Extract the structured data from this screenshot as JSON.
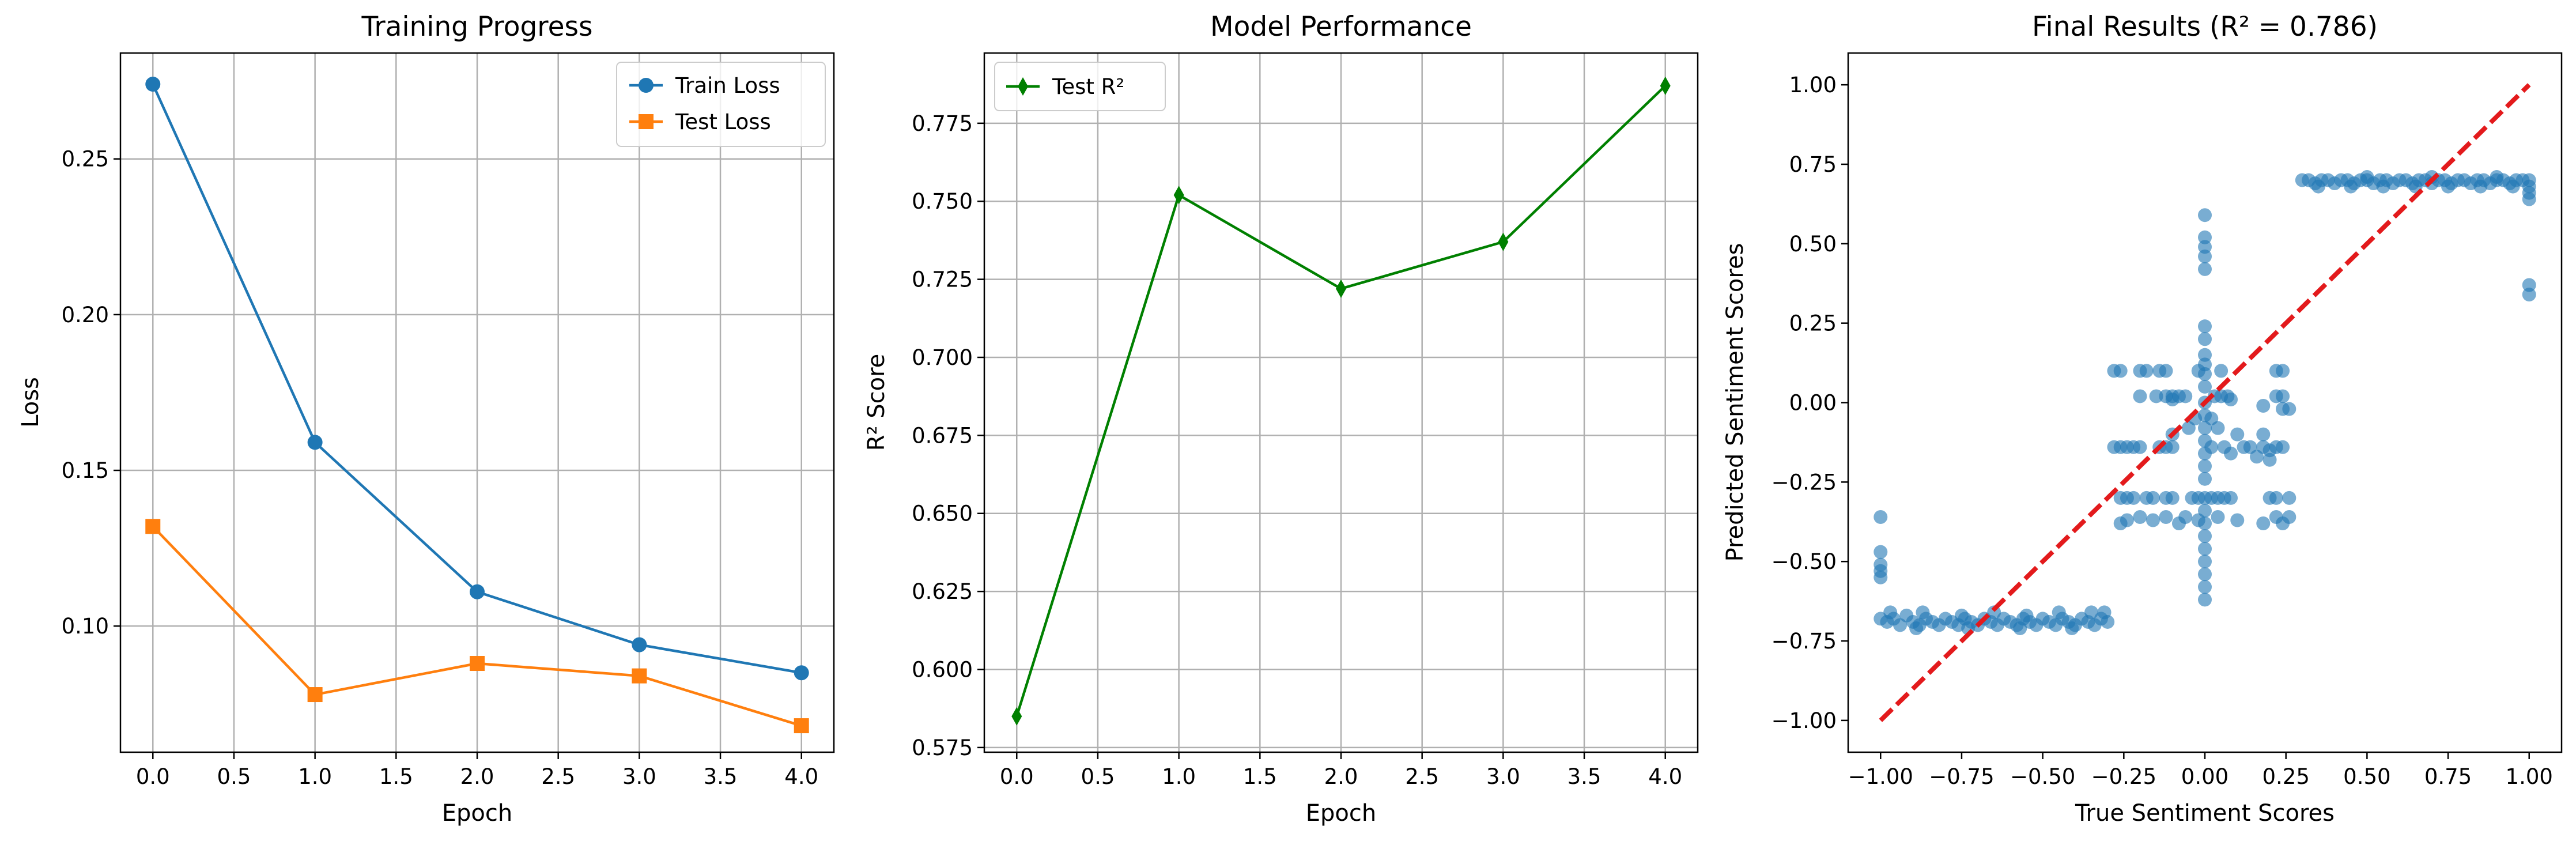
{
  "colors": {
    "train": "#1f77b4",
    "test": "#ff7f0e",
    "r2": "#008000",
    "scatter": "#1f77b4",
    "ideal_line": "#e31a1c",
    "grid": "#b0b0b0"
  },
  "chart_data": [
    {
      "type": "line",
      "title": "Training Progress",
      "xlabel": "Epoch",
      "ylabel": "Loss",
      "x": [
        0,
        1,
        2,
        3,
        4
      ],
      "xlim": [
        -0.2,
        4.2
      ],
      "ylim": [
        0.0595,
        0.284
      ],
      "xticks": [
        0.0,
        0.5,
        1.0,
        1.5,
        2.0,
        2.5,
        3.0,
        3.5,
        4.0
      ],
      "xtick_labels": [
        "0.0",
        "0.5",
        "1.0",
        "1.5",
        "2.0",
        "2.5",
        "3.0",
        "3.5",
        "4.0"
      ],
      "yticks": [
        0.1,
        0.15,
        0.2,
        0.25
      ],
      "ytick_labels": [
        "0.10",
        "0.15",
        "0.20",
        "0.25"
      ],
      "grid": true,
      "legend_position": "upper right",
      "series": [
        {
          "name": "Train Loss",
          "marker": "circle",
          "color": "#1f77b4",
          "values": [
            0.274,
            0.159,
            0.111,
            0.094,
            0.085
          ]
        },
        {
          "name": "Test Loss",
          "marker": "square",
          "color": "#ff7f0e",
          "values": [
            0.132,
            0.078,
            0.088,
            0.084,
            0.068
          ]
        }
      ]
    },
    {
      "type": "line",
      "title": "Model Performance",
      "xlabel": "Epoch",
      "ylabel": "R² Score",
      "x": [
        0,
        1,
        2,
        3,
        4
      ],
      "xlim": [
        -0.2,
        4.2
      ],
      "ylim": [
        0.5735,
        0.7975
      ],
      "xticks": [
        0.0,
        0.5,
        1.0,
        1.5,
        2.0,
        2.5,
        3.0,
        3.5,
        4.0
      ],
      "xtick_labels": [
        "0.0",
        "0.5",
        "1.0",
        "1.5",
        "2.0",
        "2.5",
        "3.0",
        "3.5",
        "4.0"
      ],
      "yticks": [
        0.575,
        0.6,
        0.625,
        0.65,
        0.675,
        0.7,
        0.725,
        0.75,
        0.775
      ],
      "ytick_labels": [
        "0.575",
        "0.600",
        "0.625",
        "0.650",
        "0.675",
        "0.700",
        "0.725",
        "0.750",
        "0.775"
      ],
      "grid": true,
      "legend_position": "upper left",
      "series": [
        {
          "name": "Test R²",
          "marker": "thin_diamond",
          "color": "#008000",
          "values": [
            0.585,
            0.752,
            0.722,
            0.737,
            0.787
          ]
        }
      ]
    },
    {
      "type": "scatter",
      "title": "Final Results (R² = 0.786)",
      "xlabel": "True Sentiment Scores",
      "ylabel": "Predicted Sentiment Scores",
      "xlim": [
        -1.1,
        1.1
      ],
      "ylim": [
        -1.1,
        1.1
      ],
      "xticks": [
        -1.0,
        -0.75,
        -0.5,
        -0.25,
        0.0,
        0.25,
        0.5,
        0.75,
        1.0
      ],
      "xtick_labels": [
        "−1.00",
        "−0.75",
        "−0.50",
        "−0.25",
        "0.00",
        "0.25",
        "0.50",
        "0.75",
        "1.00"
      ],
      "yticks": [
        -1.0,
        -0.75,
        -0.5,
        -0.25,
        0.0,
        0.25,
        0.5,
        0.75,
        1.0
      ],
      "ytick_labels": [
        "−1.00",
        "−0.75",
        "−0.50",
        "−0.25",
        "0.00",
        "0.25",
        "0.50",
        "0.75",
        "1.00"
      ],
      "grid": false,
      "ideal_line": [
        [
          -1.0,
          -1.0
        ],
        [
          1.0,
          1.0
        ]
      ],
      "points": [
        [
          -1.0,
          -0.36
        ],
        [
          -1.0,
          -0.47
        ],
        [
          -1.0,
          -0.51
        ],
        [
          -1.0,
          -0.53
        ],
        [
          -1.0,
          -0.55
        ],
        [
          -1.0,
          -0.68
        ],
        [
          -0.98,
          -0.69
        ],
        [
          -0.96,
          -0.68
        ],
        [
          -0.94,
          -0.7
        ],
        [
          -0.92,
          -0.67
        ],
        [
          -0.9,
          -0.69
        ],
        [
          -0.88,
          -0.7
        ],
        [
          -0.86,
          -0.68
        ],
        [
          -0.84,
          -0.69
        ],
        [
          -0.82,
          -0.7
        ],
        [
          -0.8,
          -0.68
        ],
        [
          -0.78,
          -0.69
        ],
        [
          -0.76,
          -0.7
        ],
        [
          -0.74,
          -0.68
        ],
        [
          -0.72,
          -0.69
        ],
        [
          -0.7,
          -0.7
        ],
        [
          -0.68,
          -0.68
        ],
        [
          -0.66,
          -0.69
        ],
        [
          -0.64,
          -0.7
        ],
        [
          -0.62,
          -0.68
        ],
        [
          -0.6,
          -0.69
        ],
        [
          -0.58,
          -0.7
        ],
        [
          -0.56,
          -0.68
        ],
        [
          -0.54,
          -0.69
        ],
        [
          -0.52,
          -0.7
        ],
        [
          -0.5,
          -0.68
        ],
        [
          -0.48,
          -0.69
        ],
        [
          -0.46,
          -0.7
        ],
        [
          -0.44,
          -0.68
        ],
        [
          -0.42,
          -0.69
        ],
        [
          -0.4,
          -0.7
        ],
        [
          -0.38,
          -0.68
        ],
        [
          -0.36,
          -0.69
        ],
        [
          -0.34,
          -0.7
        ],
        [
          -0.32,
          -0.68
        ],
        [
          -0.3,
          -0.69
        ],
        [
          -0.97,
          -0.66
        ],
        [
          -0.87,
          -0.66
        ],
        [
          -0.75,
          -0.67
        ],
        [
          -0.65,
          -0.66
        ],
        [
          -0.55,
          -0.67
        ],
        [
          -0.45,
          -0.66
        ],
        [
          -0.35,
          -0.66
        ],
        [
          -0.31,
          -0.66
        ],
        [
          -0.89,
          -0.71
        ],
        [
          -0.73,
          -0.71
        ],
        [
          -0.57,
          -0.71
        ],
        [
          -0.41,
          -0.71
        ],
        [
          -0.28,
          0.1
        ],
        [
          -0.26,
          0.1
        ],
        [
          -0.2,
          0.1
        ],
        [
          -0.18,
          0.1
        ],
        [
          -0.14,
          0.1
        ],
        [
          -0.12,
          0.1
        ],
        [
          -0.02,
          0.1
        ],
        [
          0.05,
          0.1
        ],
        [
          0.22,
          0.1
        ],
        [
          0.24,
          0.1
        ],
        [
          -0.2,
          0.02
        ],
        [
          -0.15,
          0.02
        ],
        [
          -0.12,
          0.02
        ],
        [
          -0.1,
          0.02
        ],
        [
          -0.08,
          0.02
        ],
        [
          -0.06,
          0.02
        ],
        [
          0.03,
          0.02
        ],
        [
          0.05,
          0.02
        ],
        [
          0.07,
          0.02
        ],
        [
          0.22,
          0.02
        ],
        [
          0.24,
          0.02
        ],
        [
          -0.1,
          0.01
        ],
        [
          0.08,
          0.01
        ],
        [
          0.18,
          -0.01
        ],
        [
          0.24,
          -0.02
        ],
        [
          0.26,
          -0.02
        ],
        [
          -0.05,
          -0.08
        ],
        [
          0.04,
          -0.08
        ],
        [
          -0.1,
          -0.1
        ],
        [
          0.1,
          -0.1
        ],
        [
          0.18,
          -0.1
        ],
        [
          -0.03,
          -0.05
        ],
        [
          0.02,
          -0.05
        ],
        [
          -0.28,
          -0.14
        ],
        [
          -0.26,
          -0.14
        ],
        [
          -0.24,
          -0.14
        ],
        [
          -0.22,
          -0.14
        ],
        [
          -0.2,
          -0.14
        ],
        [
          -0.14,
          -0.14
        ],
        [
          -0.12,
          -0.14
        ],
        [
          -0.1,
          -0.14
        ],
        [
          0.02,
          -0.14
        ],
        [
          0.06,
          -0.14
        ],
        [
          0.12,
          -0.14
        ],
        [
          0.14,
          -0.14
        ],
        [
          0.18,
          -0.14
        ],
        [
          0.2,
          -0.15
        ],
        [
          0.22,
          -0.14
        ],
        [
          0.24,
          -0.14
        ],
        [
          0.16,
          -0.17
        ],
        [
          0.2,
          -0.18
        ],
        [
          0.08,
          -0.16
        ],
        [
          -0.26,
          -0.3
        ],
        [
          -0.24,
          -0.3
        ],
        [
          -0.22,
          -0.3
        ],
        [
          -0.18,
          -0.3
        ],
        [
          -0.16,
          -0.3
        ],
        [
          -0.12,
          -0.3
        ],
        [
          -0.1,
          -0.3
        ],
        [
          -0.04,
          -0.3
        ],
        [
          -0.02,
          -0.3
        ],
        [
          0.0,
          -0.3
        ],
        [
          0.02,
          -0.3
        ],
        [
          0.04,
          -0.3
        ],
        [
          0.06,
          -0.3
        ],
        [
          0.08,
          -0.3
        ],
        [
          0.2,
          -0.3
        ],
        [
          0.22,
          -0.3
        ],
        [
          0.26,
          -0.3
        ],
        [
          -0.2,
          -0.36
        ],
        [
          -0.16,
          -0.37
        ],
        [
          -0.12,
          -0.36
        ],
        [
          -0.06,
          -0.36
        ],
        [
          -0.02,
          -0.37
        ],
        [
          0.04,
          -0.36
        ],
        [
          0.1,
          -0.37
        ],
        [
          0.22,
          -0.36
        ],
        [
          0.26,
          -0.36
        ],
        [
          -0.26,
          -0.38
        ],
        [
          -0.24,
          -0.37
        ],
        [
          -0.08,
          -0.38
        ],
        [
          0.18,
          -0.38
        ],
        [
          0.24,
          -0.38
        ],
        [
          0.0,
          0.59
        ],
        [
          0.0,
          0.52
        ],
        [
          0.0,
          0.49
        ],
        [
          0.0,
          0.46
        ],
        [
          0.0,
          0.42
        ],
        [
          0.0,
          0.24
        ],
        [
          0.0,
          0.2
        ],
        [
          0.0,
          0.15
        ],
        [
          0.0,
          0.12
        ],
        [
          0.0,
          0.09
        ],
        [
          0.0,
          0.05
        ],
        [
          0.0,
          0.0
        ],
        [
          0.0,
          -0.04
        ],
        [
          0.0,
          -0.08
        ],
        [
          0.0,
          -0.12
        ],
        [
          0.0,
          -0.16
        ],
        [
          0.0,
          -0.2
        ],
        [
          0.0,
          -0.24
        ],
        [
          0.0,
          -0.34
        ],
        [
          0.0,
          -0.38
        ],
        [
          0.0,
          -0.42
        ],
        [
          0.0,
          -0.46
        ],
        [
          0.0,
          -0.5
        ],
        [
          0.0,
          -0.54
        ],
        [
          0.0,
          -0.58
        ],
        [
          0.0,
          -0.62
        ],
        [
          0.3,
          0.7
        ],
        [
          0.32,
          0.7
        ],
        [
          0.34,
          0.69
        ],
        [
          0.36,
          0.7
        ],
        [
          0.38,
          0.7
        ],
        [
          0.4,
          0.69
        ],
        [
          0.42,
          0.7
        ],
        [
          0.44,
          0.7
        ],
        [
          0.46,
          0.69
        ],
        [
          0.48,
          0.7
        ],
        [
          0.5,
          0.7
        ],
        [
          0.52,
          0.69
        ],
        [
          0.54,
          0.7
        ],
        [
          0.56,
          0.7
        ],
        [
          0.58,
          0.69
        ],
        [
          0.6,
          0.7
        ],
        [
          0.62,
          0.7
        ],
        [
          0.64,
          0.69
        ],
        [
          0.66,
          0.7
        ],
        [
          0.68,
          0.7
        ],
        [
          0.7,
          0.69
        ],
        [
          0.72,
          0.7
        ],
        [
          0.74,
          0.7
        ],
        [
          0.76,
          0.69
        ],
        [
          0.78,
          0.7
        ],
        [
          0.8,
          0.7
        ],
        [
          0.82,
          0.69
        ],
        [
          0.84,
          0.7
        ],
        [
          0.86,
          0.7
        ],
        [
          0.88,
          0.69
        ],
        [
          0.9,
          0.7
        ],
        [
          0.92,
          0.7
        ],
        [
          0.94,
          0.69
        ],
        [
          0.96,
          0.7
        ],
        [
          0.98,
          0.7
        ],
        [
          0.35,
          0.68
        ],
        [
          0.45,
          0.68
        ],
        [
          0.55,
          0.68
        ],
        [
          0.65,
          0.68
        ],
        [
          0.75,
          0.68
        ],
        [
          0.85,
          0.68
        ],
        [
          0.95,
          0.68
        ],
        [
          0.5,
          0.71
        ],
        [
          0.7,
          0.71
        ],
        [
          0.9,
          0.71
        ],
        [
          1.0,
          0.7
        ],
        [
          1.0,
          0.68
        ],
        [
          1.0,
          0.66
        ],
        [
          1.0,
          0.64
        ],
        [
          1.0,
          0.37
        ],
        [
          1.0,
          0.34
        ]
      ]
    }
  ]
}
